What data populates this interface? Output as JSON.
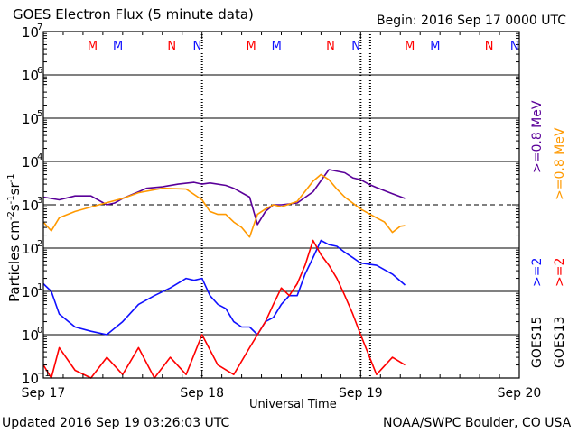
{
  "header": {
    "title": "GOES Electron Flux (5 minute data)",
    "begin": "Begin: 2016 Sep 17 0000 UTC"
  },
  "footer": {
    "updated": "Updated 2016 Sep 19 03:26:03 UTC",
    "credit": "NOAA/SWPC Boulder, CO USA"
  },
  "colors": {
    "blue": "#1010ff",
    "red": "#ff0000",
    "purple": "#5a0099",
    "orange": "#ff9900",
    "axes": "#000000"
  },
  "chart_data": {
    "type": "line",
    "title": "GOES Electron Flux (5 minute data)",
    "xlabel": "Universal Time",
    "ylabel": "Particles cm⁻²s⁻¹sr⁻¹",
    "ylabel_parts": [
      "Particles cm",
      "-2",
      "s",
      "-1",
      "sr",
      "-1"
    ],
    "yscale": "log",
    "ylim": [
      0.1,
      10000000
    ],
    "xlim": [
      0,
      3
    ],
    "x_unit": "days since 2016 Sep 17 00:00 UTC",
    "x_ticks": [
      {
        "x": 0,
        "label": "Sep 17"
      },
      {
        "x": 1,
        "label": "Sep 18"
      },
      {
        "x": 2,
        "label": "Sep 19"
      },
      {
        "x": 3,
        "label": "Sep 20"
      }
    ],
    "y_ticks": [
      {
        "exp": -1,
        "base": "10",
        "power": "−1"
      },
      {
        "exp": 0,
        "base": "10",
        "power": "0"
      },
      {
        "exp": 1,
        "base": "10",
        "power": "1"
      },
      {
        "exp": 2,
        "base": "10",
        "power": "2"
      },
      {
        "exp": 3,
        "base": "10",
        "power": "3"
      },
      {
        "exp": 4,
        "base": "10",
        "power": "4"
      },
      {
        "exp": 5,
        "base": "10",
        "power": "5"
      },
      {
        "exp": 6,
        "base": "10",
        "power": "6"
      },
      {
        "exp": 7,
        "base": "10",
        "power": "7"
      }
    ],
    "grid": true,
    "threshold": {
      "value": 1000,
      "style": "dashed"
    },
    "day_markers_x": [
      1,
      2,
      2.06
    ],
    "legend_placement": "right",
    "legend": {
      "goes15": "GOES15",
      "goes13": "GOES13",
      "items": [
        {
          "text": ">=0.8 MeV",
          "color": "#5a0099"
        },
        {
          "text": ">=0.8 MeV",
          "color": "#ff9900"
        },
        {
          "text": ">=2",
          "color": "#1010ff"
        },
        {
          "text": ">=2",
          "color": "#ff0000"
        }
      ]
    },
    "markers": [
      {
        "x": 0.31,
        "label": "M",
        "color": "#ff0000"
      },
      {
        "x": 0.47,
        "label": "M",
        "color": "#1010ff"
      },
      {
        "x": 0.81,
        "label": "N",
        "color": "#ff0000"
      },
      {
        "x": 0.97,
        "label": "N",
        "color": "#1010ff"
      },
      {
        "x": 1.31,
        "label": "M",
        "color": "#ff0000"
      },
      {
        "x": 1.47,
        "label": "M",
        "color": "#1010ff"
      },
      {
        "x": 1.81,
        "label": "N",
        "color": "#ff0000"
      },
      {
        "x": 1.97,
        "label": "N",
        "color": "#1010ff"
      },
      {
        "x": 2.31,
        "label": "M",
        "color": "#ff0000"
      },
      {
        "x": 2.47,
        "label": "M",
        "color": "#1010ff"
      },
      {
        "x": 2.81,
        "label": "N",
        "color": "#ff0000"
      },
      {
        "x": 2.97,
        "label": "N",
        "color": "#1010ff"
      }
    ],
    "series": [
      {
        "name": "GOES15 >=0.8 MeV",
        "color": "#5a0099",
        "x": [
          0.0,
          0.1,
          0.2,
          0.3,
          0.4,
          0.45,
          0.5,
          0.6,
          0.65,
          0.75,
          0.85,
          0.95,
          1.0,
          1.05,
          1.15,
          1.2,
          1.3,
          1.35,
          1.4,
          1.45,
          1.5,
          1.6,
          1.7,
          1.8,
          1.9,
          1.95,
          2.0,
          2.05,
          2.1,
          2.2,
          2.28
        ],
        "y": [
          1500,
          1300,
          1600,
          1600,
          1000,
          1100,
          1400,
          2000,
          2400,
          2600,
          3000,
          3300,
          3000,
          3200,
          2800,
          2400,
          1500,
          350,
          700,
          1000,
          1000,
          1100,
          2000,
          6500,
          5500,
          4200,
          3800,
          3000,
          2500,
          1800,
          1400
        ]
      },
      {
        "name": "GOES13 >=0.8 MeV",
        "color": "#ff9900",
        "x": [
          0.0,
          0.05,
          0.1,
          0.2,
          0.35,
          0.5,
          0.6,
          0.75,
          0.9,
          1.0,
          1.05,
          1.1,
          1.15,
          1.2,
          1.25,
          1.3,
          1.35,
          1.4,
          1.45,
          1.5,
          1.6,
          1.7,
          1.75,
          1.8,
          1.85,
          1.9,
          2.0,
          2.1,
          2.15,
          2.2,
          2.25,
          2.28
        ],
        "y": [
          400,
          250,
          500,
          700,
          1000,
          1400,
          1900,
          2400,
          2300,
          1300,
          700,
          600,
          600,
          400,
          300,
          180,
          600,
          800,
          1000,
          900,
          1200,
          3500,
          5000,
          3800,
          2300,
          1500,
          800,
          500,
          400,
          230,
          320,
          330
        ]
      },
      {
        "name": "GOES15 >=2",
        "color": "#1010ff",
        "x": [
          0.0,
          0.05,
          0.1,
          0.2,
          0.3,
          0.4,
          0.5,
          0.6,
          0.7,
          0.8,
          0.9,
          0.95,
          1.0,
          1.05,
          1.1,
          1.15,
          1.2,
          1.25,
          1.3,
          1.35,
          1.4,
          1.45,
          1.5,
          1.55,
          1.6,
          1.65,
          1.7,
          1.75,
          1.8,
          1.85,
          1.9,
          1.95,
          2.0,
          2.1,
          2.2,
          2.28
        ],
        "y": [
          15,
          10,
          3,
          1.5,
          1.2,
          1.0,
          2,
          5,
          8,
          12,
          20,
          18,
          20,
          8,
          5,
          4,
          2,
          1.5,
          1.5,
          1.0,
          2.0,
          2.5,
          5,
          8,
          8,
          25,
          60,
          150,
          120,
          110,
          80,
          60,
          45,
          40,
          25,
          14
        ]
      },
      {
        "name": "GOES13 >=2",
        "color": "#ff0000",
        "x": [
          0.0,
          0.05,
          0.1,
          0.2,
          0.3,
          0.4,
          0.5,
          0.6,
          0.7,
          0.8,
          0.9,
          1.0,
          1.1,
          1.2,
          1.3,
          1.35,
          1.4,
          1.45,
          1.5,
          1.55,
          1.6,
          1.65,
          1.7,
          1.75,
          1.8,
          1.85,
          1.9,
          1.95,
          2.0,
          2.1,
          2.2,
          2.28
        ],
        "y": [
          0.2,
          0.1,
          0.5,
          0.15,
          0.1,
          0.3,
          0.12,
          0.5,
          0.1,
          0.3,
          0.12,
          1.0,
          0.2,
          0.12,
          0.5,
          1.0,
          2.0,
          5,
          12,
          8,
          15,
          40,
          150,
          70,
          40,
          20,
          8,
          3,
          1.0,
          0.12,
          0.3,
          0.2
        ]
      }
    ]
  }
}
